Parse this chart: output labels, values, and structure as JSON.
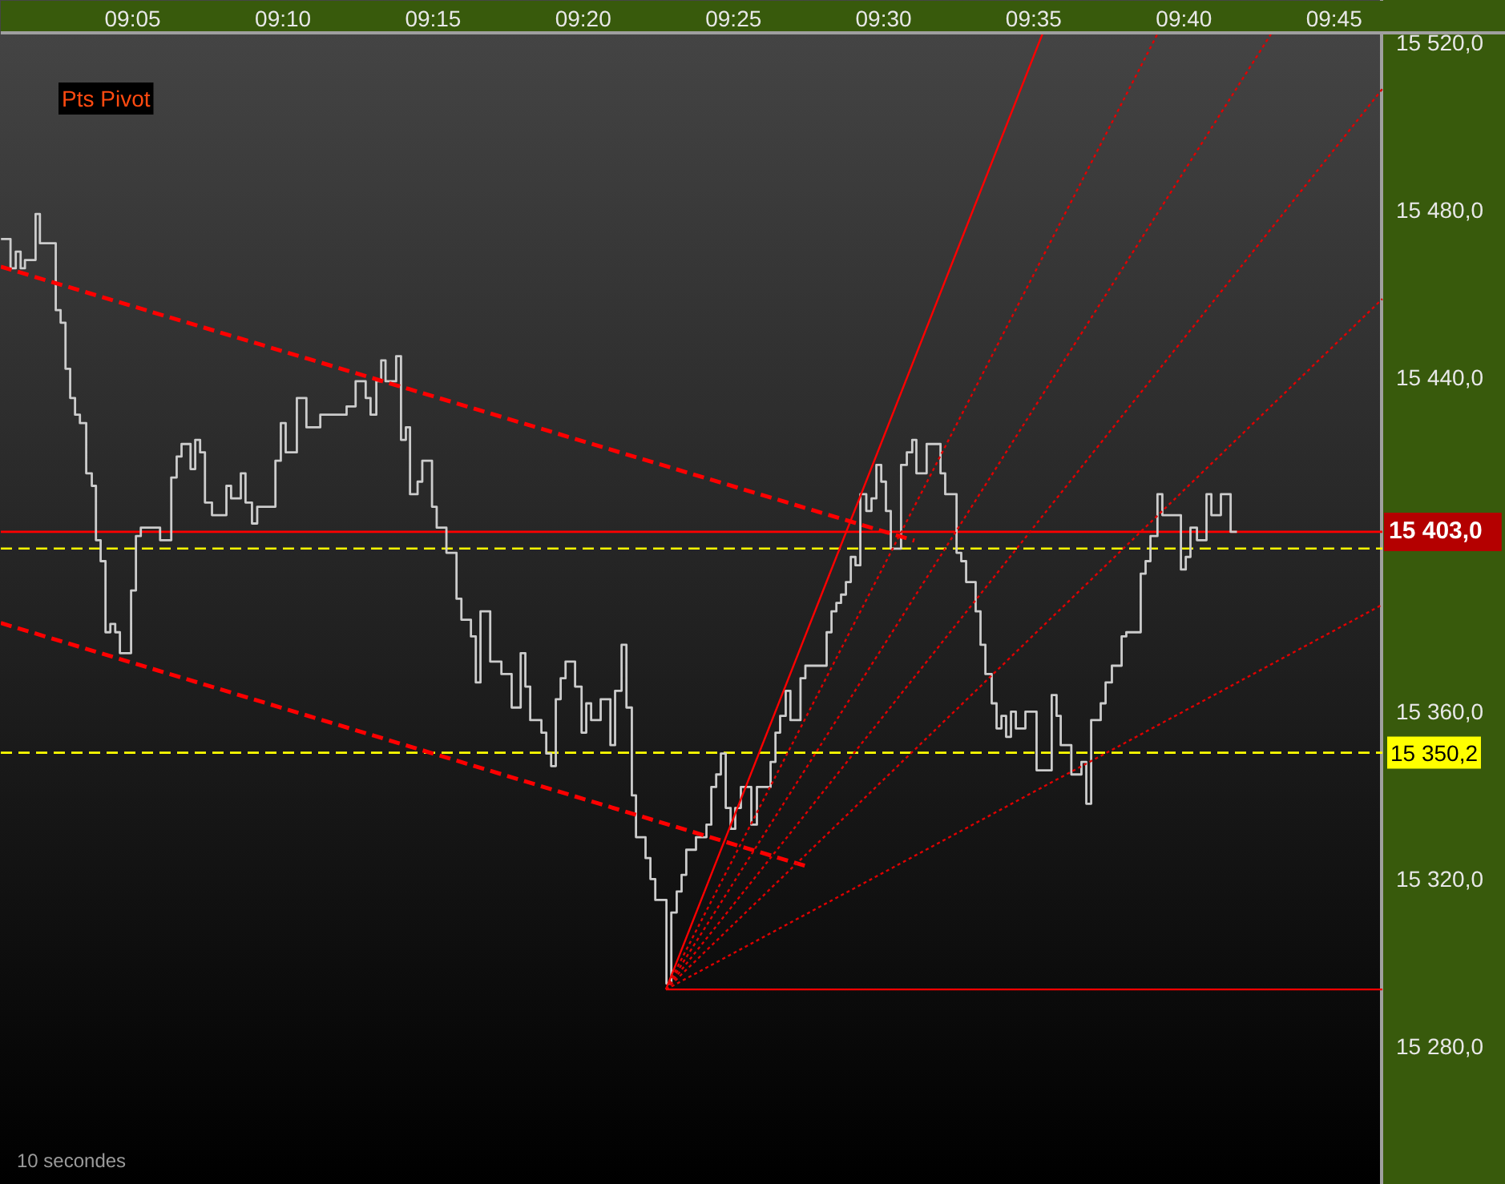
{
  "chart_data": {
    "type": "step",
    "xlim": [
      9.0101,
      9.8453
    ],
    "ylim": [
      15246.9,
      15522.3
    ],
    "xticks": [
      {
        "value": 9.0833,
        "label": "09:05"
      },
      {
        "value": 9.1667,
        "label": "09:10"
      },
      {
        "value": 9.25,
        "label": "09:15"
      },
      {
        "value": 9.3333,
        "label": "09:20"
      },
      {
        "value": 9.4167,
        "label": "09:25"
      },
      {
        "value": 9.5,
        "label": "09:30"
      },
      {
        "value": 9.5833,
        "label": "09:35"
      },
      {
        "value": 9.6667,
        "label": "09:40"
      },
      {
        "value": 9.75,
        "label": "09:45"
      }
    ],
    "yticks": [
      {
        "value": 15280,
        "label": "15 280,0"
      },
      {
        "value": 15320,
        "label": "15 320,0"
      },
      {
        "value": 15360,
        "label": "15 360,0"
      },
      {
        "value": 15440,
        "label": "15 440,0"
      },
      {
        "value": 15480,
        "label": "15 480,0"
      },
      {
        "value": 15520,
        "label": "15 520,0"
      }
    ],
    "series": [
      {
        "color": "#cccccc",
        "x": [
          9.0102,
          9.0155,
          9.0184,
          9.0211,
          9.0235,
          9.0294,
          9.0318,
          9.0406,
          9.0433,
          9.046,
          9.0486,
          9.0513,
          9.054,
          9.0575,
          9.0606,
          9.0629,
          9.0655,
          9.0682,
          9.0709,
          9.0736,
          9.0762,
          9.0824,
          9.0851,
          9.0878,
          9.0985,
          9.1047,
          9.1077,
          9.1104,
          9.1154,
          9.118,
          9.1207,
          9.1234,
          9.1273,
          9.1353,
          9.1379,
          9.1433,
          9.1459,
          9.1495,
          9.1524,
          9.1625,
          9.1655,
          9.1682,
          9.1744,
          9.1797,
          9.1874,
          9.202,
          9.207,
          9.2126,
          9.2153,
          9.2185,
          9.2212,
          9.2236,
          9.2295,
          9.2322,
          9.2349,
          9.2372,
          9.2414,
          9.244,
          9.2494,
          9.252,
          9.2574,
          9.263,
          9.2657,
          9.271,
          9.2737,
          9.2763,
          9.2817,
          9.2879,
          9.2936,
          9.2986,
          9.3012,
          9.3039,
          9.3101,
          9.3128,
          9.3155,
          9.3181,
          9.3208,
          9.3235,
          9.3288,
          9.3324,
          9.335,
          9.3377,
          9.343,
          9.3484,
          9.351,
          9.3546,
          9.3573,
          9.3603,
          9.3626,
          9.3679,
          9.3706,
          9.3733,
          9.3795,
          9.3822,
          9.3852,
          9.3879,
          9.3905,
          9.3959,
          9.4017,
          9.4044,
          9.4071,
          9.4097,
          9.4124,
          9.4151,
          9.4177,
          9.4208,
          9.4266,
          9.4297,
          9.4373,
          9.44,
          9.4426,
          9.4457,
          9.4483,
          9.4539,
          9.4566,
          9.4684,
          9.4711,
          9.4738,
          9.4764,
          9.4791,
          9.4818,
          9.4844,
          9.4871,
          9.4904,
          9.4933,
          9.496,
          9.4987,
          9.5013,
          9.504,
          9.5097,
          9.5129,
          9.5159,
          9.5182,
          9.5239,
          9.5316,
          9.5342,
          9.5405,
          9.5431,
          9.5458,
          9.5511,
          9.5538,
          9.5565,
          9.56,
          9.5627,
          9.5654,
          9.568,
          9.5707,
          9.5734,
          9.5787,
          9.5849,
          9.5933,
          9.596,
          9.5983,
          9.6042,
          9.6098,
          9.6125,
          9.6152,
          9.6205,
          9.6232,
          9.6267,
          9.6321,
          9.6347,
          9.6427,
          9.6454,
          9.6481,
          9.652,
          9.6547,
          9.665,
          9.6677,
          9.6703,
          9.6739,
          9.6792,
          9.6819,
          9.6872,
          9.6926,
          9.6961
        ],
        "values": [
          15473,
          15466,
          15470,
          15466,
          15468,
          15479,
          15472,
          15456,
          15453,
          15442,
          15435,
          15431,
          15429,
          15417,
          15414,
          15401,
          15396,
          15379,
          15381,
          15379,
          15374,
          15389,
          15402,
          15404,
          15401,
          15416,
          15421,
          15424,
          15418,
          15425,
          15422,
          15410,
          15407,
          15414,
          15411,
          15417,
          15410,
          15405,
          15409,
          15420,
          15429,
          15422,
          15435,
          15428,
          15431,
          15433,
          15439,
          15435,
          15431,
          15439,
          15444,
          15439,
          15445,
          15425,
          15428,
          15412,
          15415,
          15420,
          15409,
          15404,
          15398,
          15387,
          15382,
          15378,
          15367,
          15384,
          15372,
          15369,
          15361,
          15374,
          15366,
          15358,
          15355,
          15350,
          15347,
          15363,
          15368,
          15372,
          15366,
          15355,
          15362,
          15358,
          15363,
          15352,
          15365,
          15376,
          15361,
          15340,
          15330,
          15325,
          15320,
          15315,
          15295,
          15312,
          15317,
          15321,
          15327,
          15330,
          15333,
          15342,
          15345,
          15350,
          15337,
          15332,
          15337,
          15342,
          15333,
          15342,
          15348,
          15355,
          15359,
          15365,
          15358,
          15368,
          15371,
          15379,
          15384,
          15386,
          15388,
          15391,
          15397,
          15395,
          15412,
          15408,
          15411,
          15419,
          15415,
          15408,
          15399,
          15419,
          15422,
          15425,
          15417,
          15424,
          15417,
          15412,
          15398,
          15396,
          15391,
          15384,
          15376,
          15369,
          15362,
          15356,
          15359,
          15354,
          15360,
          15356,
          15360,
          15346,
          15364,
          15359,
          15352,
          15345,
          15348,
          15338,
          15358,
          15362,
          15367,
          15371,
          15378,
          15379,
          15393,
          15396,
          15402,
          15412,
          15407,
          15394,
          15397,
          15404,
          15401,
          15412,
          15407,
          15412,
          15403,
          15403
        ]
      },
      {
        "type": "line",
        "color": "#ff0000",
        "line_style": "dashed",
        "x": [
          9.0101,
          9.5171
        ],
        "values": [
          15466.4,
          15400.9
        ]
      },
      {
        "type": "line",
        "color": "#ff0000",
        "line_style": "dashed",
        "x": [
          9.0101,
          9.4584
        ],
        "values": [
          15381.2,
          15322.9
        ]
      },
      {
        "type": "line",
        "color": "#ff0000",
        "line_style": "solid",
        "x": [
          9.3792,
          9.5884
        ],
        "values": [
          15293.6,
          15522.3
        ]
      },
      {
        "type": "line",
        "color": "#e00000",
        "line_style": "dotted",
        "x": [
          9.3792,
          9.6523
        ],
        "values": [
          15293.6,
          15522.3
        ]
      },
      {
        "type": "line",
        "color": "#e00000",
        "line_style": "dotted",
        "x": [
          9.3792,
          9.7154
        ],
        "values": [
          15293.6,
          15522.3
        ]
      },
      {
        "type": "line",
        "color": "#e00000",
        "line_style": "dotted",
        "x": [
          9.3792,
          9.7768
        ],
        "values": [
          15293.6,
          15508.9
        ]
      },
      {
        "type": "line",
        "color": "#e00000",
        "line_style": "dotted",
        "x": [
          9.3792,
          9.7768
        ],
        "values": [
          15293.6,
          15458.7
        ]
      },
      {
        "type": "line",
        "color": "#e00000",
        "line_style": "dotted",
        "x": [
          9.3792,
          9.7768
        ],
        "values": [
          15293.6,
          15385.6
        ]
      },
      {
        "type": "line",
        "color": "#ff0000",
        "line_style": "solid",
        "x": [
          9.3792,
          9.7768
        ],
        "values": [
          15293.6,
          15293.6
        ]
      }
    ],
    "ref_lines": [
      {
        "axis": "y",
        "value": 15403.0,
        "label": "15 403,0",
        "color": "#ff0000",
        "line_style": "solid"
      },
      {
        "axis": "y",
        "value": 15399,
        "color": "#ffff00",
        "line_style": "dashed"
      },
      {
        "axis": "y",
        "value": 15350.2,
        "label": "15 350,2",
        "color": "#ffff00",
        "line_style": "dashed"
      }
    ],
    "annotations": [
      "Pts Pivot",
      "10 secondes"
    ]
  }
}
